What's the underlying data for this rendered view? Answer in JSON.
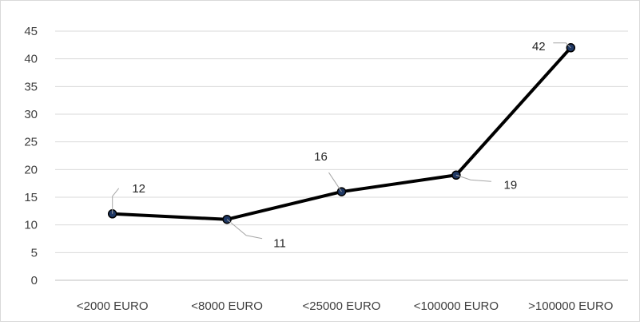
{
  "chart_data": {
    "type": "line",
    "title": "",
    "xlabel": "",
    "ylabel": "",
    "categories": [
      "<2000 EURO",
      "<8000 EURO",
      "<25000 EURO",
      "<100000 EURO",
      ">100000 EURO"
    ],
    "series": [
      {
        "values": [
          12,
          11,
          16,
          19,
          42
        ],
        "color": "#000000",
        "marker_color": "#1f3864"
      }
    ],
    "y_ticks": [
      "0",
      "5",
      "10",
      "15",
      "20",
      "25",
      "30",
      "35",
      "40",
      "45"
    ],
    "ylim": [
      0,
      45
    ],
    "grid": true,
    "legend": "none",
    "data_labels": [
      "12",
      "11",
      "16",
      "19",
      "42"
    ]
  }
}
